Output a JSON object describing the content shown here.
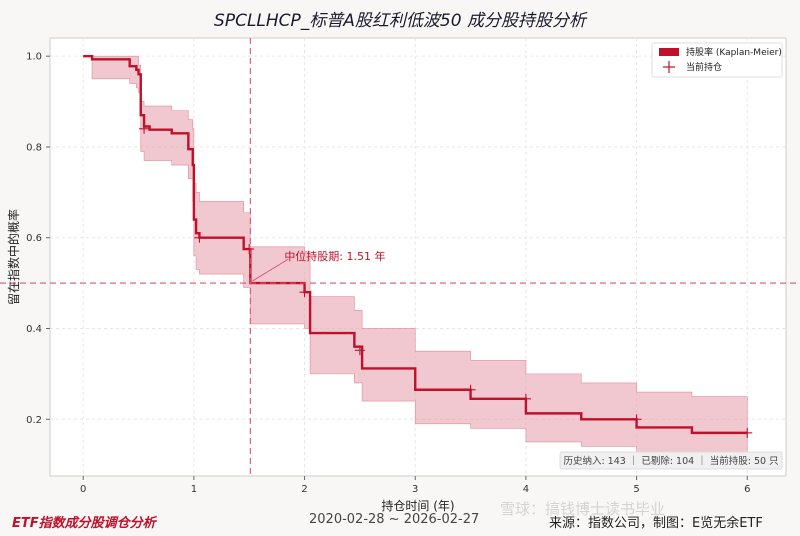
{
  "chart_data": {
    "type": "line",
    "title": "SPCLLHCP_标普A股红利低波50 成分股持股分析",
    "xlabel": "持仓时间 (年)",
    "ylabel": "留在指数中的概率",
    "xlim": [
      -0.3,
      6.35
    ],
    "ylim": [
      0.075,
      1.04
    ],
    "xticks": [
      0,
      1,
      2,
      3,
      4,
      5,
      6
    ],
    "yticks": [
      0.2,
      0.4,
      0.6,
      0.8,
      1.0
    ],
    "xtick_labels": [
      "0",
      "1",
      "2",
      "3",
      "4",
      "5",
      "6"
    ],
    "ytick_labels": [
      "0.2",
      "0.4",
      "0.6",
      "0.8",
      "1.0"
    ],
    "grid": true,
    "legend_position": "top-right",
    "legend": [
      "持股率 (Kaplan-Meier)",
      "当前持仓"
    ],
    "km_steps": {
      "x": [
        0,
        0.08,
        0.35,
        0.42,
        0.48,
        0.5,
        0.52,
        0.55,
        0.6,
        0.8,
        0.95,
        0.99,
        1.0,
        1.02,
        1.05,
        1.45,
        1.51,
        1.78,
        2.0,
        2.05,
        2.45,
        2.52,
        3.0,
        3.5,
        4.0,
        4.5,
        5.0,
        5.5,
        6.0
      ],
      "y": [
        1.0,
        0.993,
        0.993,
        0.978,
        0.97,
        0.96,
        0.87,
        0.845,
        0.838,
        0.83,
        0.795,
        0.76,
        0.64,
        0.61,
        0.6,
        0.575,
        0.5,
        0.5,
        0.48,
        0.39,
        0.36,
        0.312,
        0.265,
        0.245,
        0.213,
        0.2,
        0.182,
        0.17,
        0.17
      ]
    },
    "ci_upper": [
      1.0,
      1.0,
      1.0,
      1.0,
      1.0,
      0.98,
      0.9,
      0.89,
      0.89,
      0.88,
      0.86,
      0.84,
      0.72,
      0.7,
      0.68,
      0.655,
      0.58,
      0.58,
      0.57,
      0.47,
      0.44,
      0.4,
      0.35,
      0.33,
      0.3,
      0.28,
      0.26,
      0.25,
      0.25
    ],
    "ci_lower": [
      1.0,
      0.95,
      0.95,
      0.94,
      0.93,
      0.92,
      0.79,
      0.77,
      0.77,
      0.76,
      0.73,
      0.68,
      0.56,
      0.53,
      0.52,
      0.49,
      0.41,
      0.41,
      0.4,
      0.3,
      0.28,
      0.24,
      0.19,
      0.18,
      0.15,
      0.14,
      0.12,
      0.11,
      0.11
    ],
    "censored_marks": [
      {
        "x": 0.55,
        "y": 0.84
      },
      {
        "x": 1.05,
        "y": 0.6
      },
      {
        "x": 1.5,
        "y": 0.575
      },
      {
        "x": 2.0,
        "y": 0.48
      },
      {
        "x": 2.5,
        "y": 0.352
      },
      {
        "x": 3.5,
        "y": 0.265
      },
      {
        "x": 4.0,
        "y": 0.245
      },
      {
        "x": 5.0,
        "y": 0.2
      },
      {
        "x": 6.0,
        "y": 0.17
      }
    ],
    "median": {
      "x": 1.51,
      "y": 0.5,
      "label": "中位持股期: 1.51 年"
    },
    "stats_box": "历史纳入: 143 ｜ 已剔除: 104 ｜ 当前持股: 50 只",
    "colors": {
      "line": "#c0102a",
      "band": "#e8a4b0",
      "ref": "#d9556e",
      "mark": "#c0102a"
    }
  },
  "footer": {
    "left": "ETF指数成分股调仓分析",
    "dates": "2020-02-28 ~ 2026-02-27",
    "source": "来源：指数公司，制图：E览无余ETF",
    "watermark": "雪球：搞钱博士读书毕业"
  }
}
